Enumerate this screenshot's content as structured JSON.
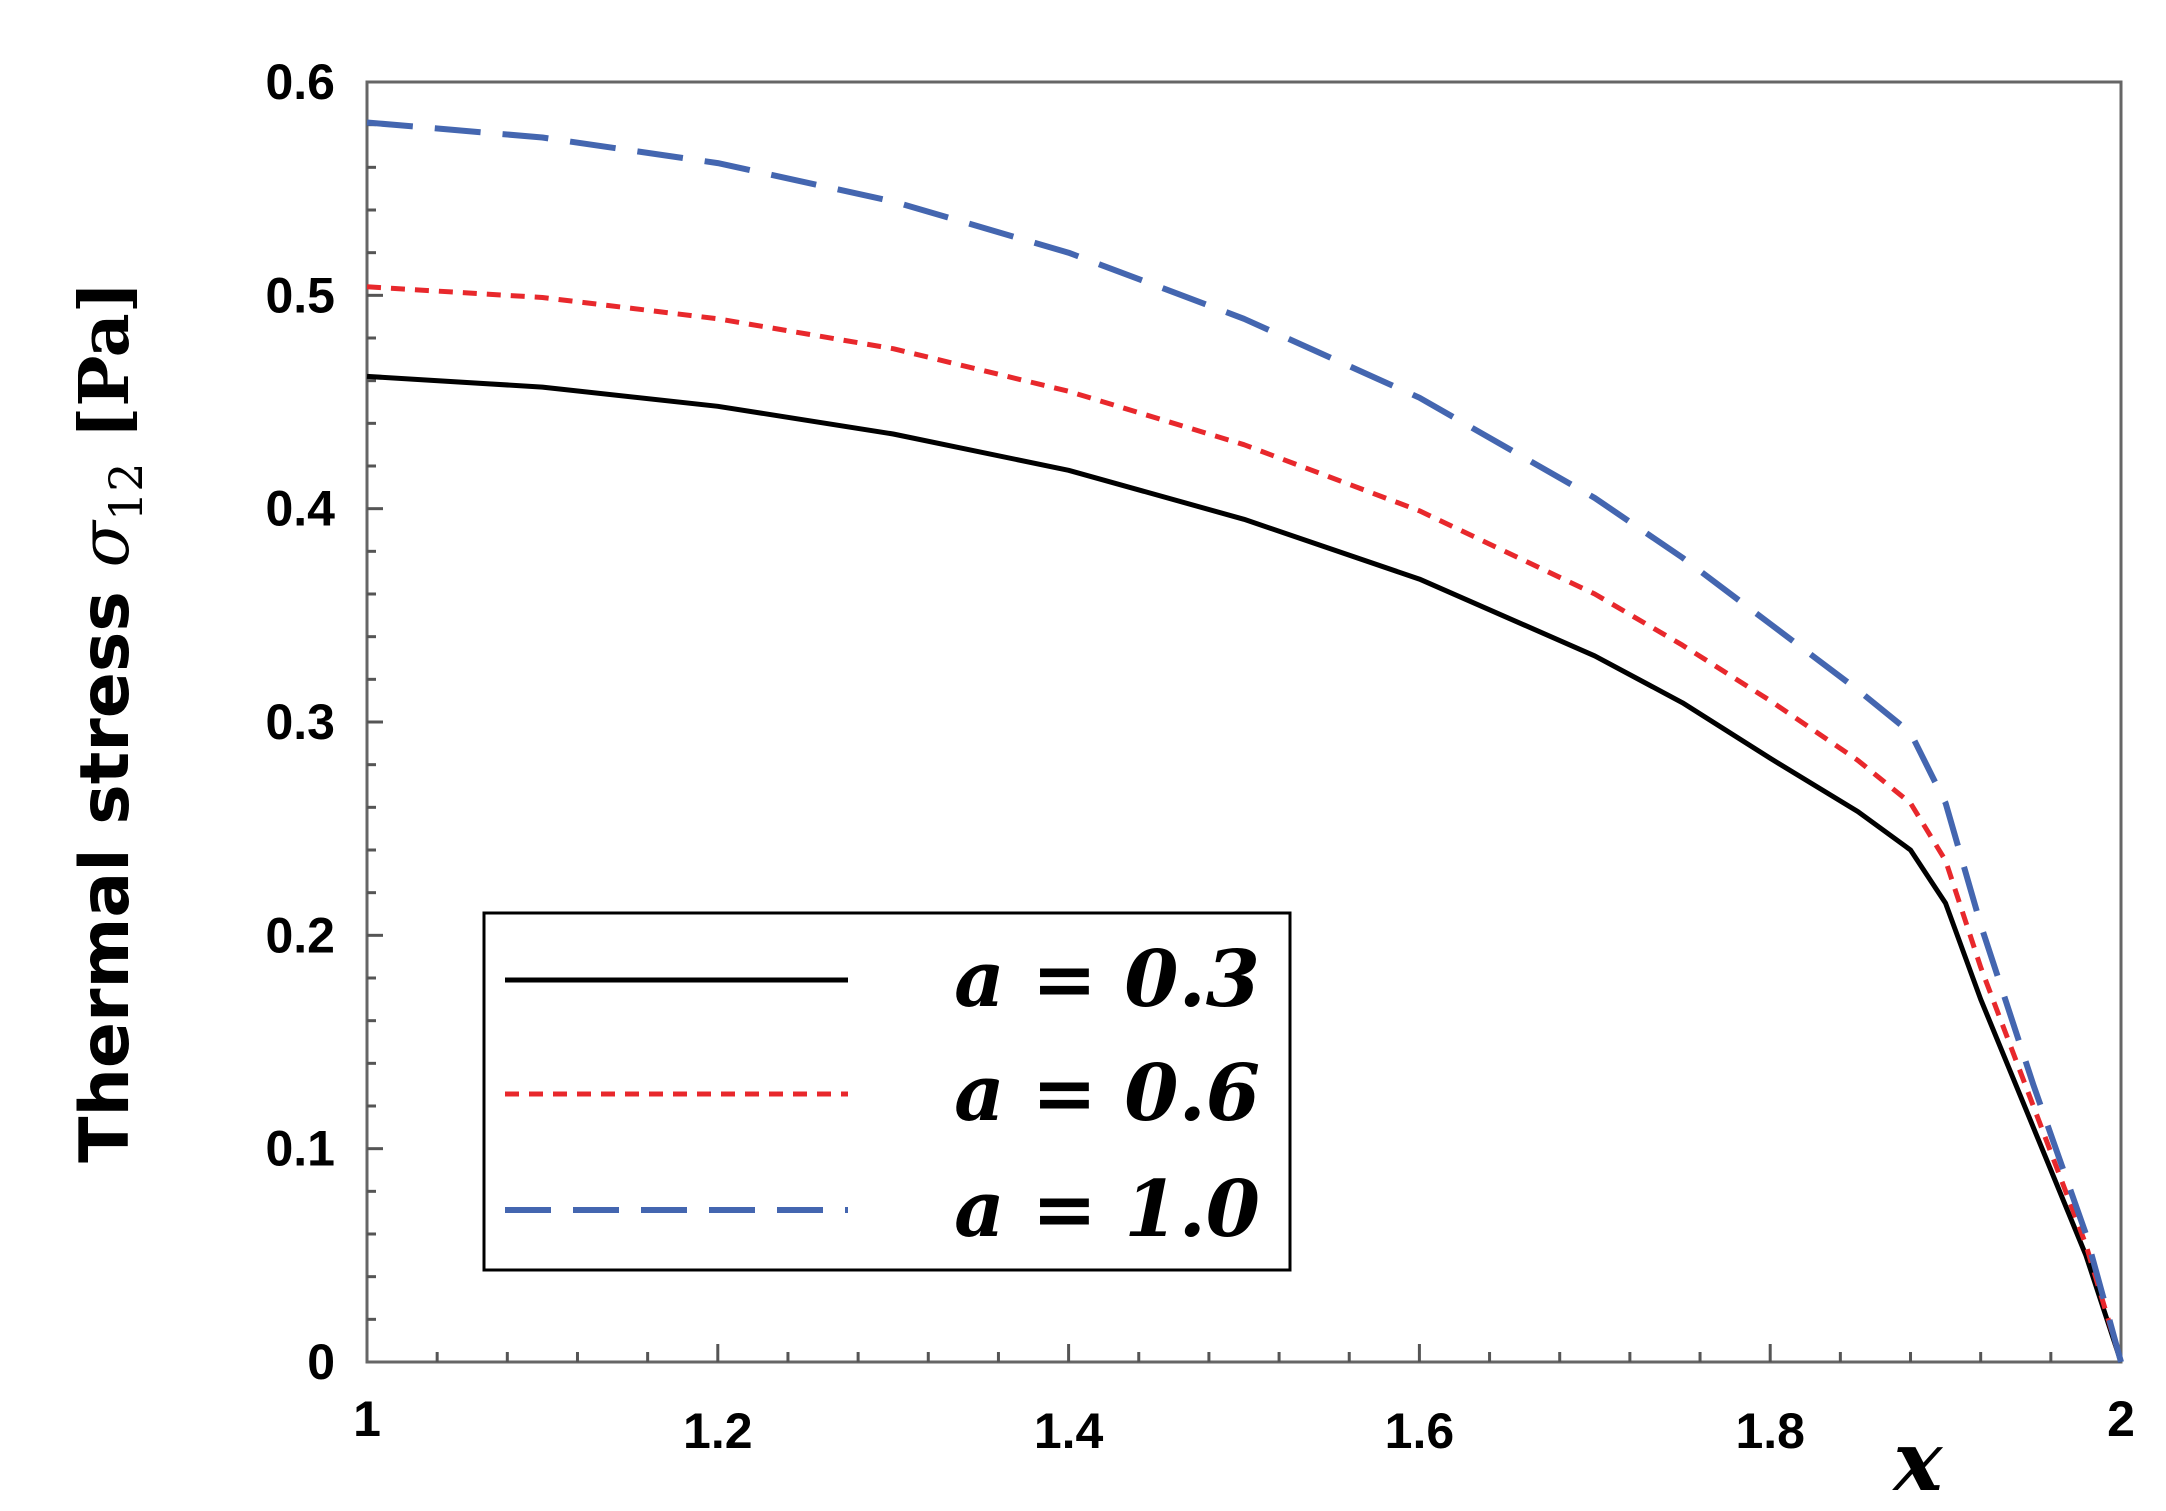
{
  "chart_data": {
    "type": "line",
    "ylabel": "Thermal stress σ12 [Pa]",
    "xlabel": "x",
    "xlim": [
      1,
      2
    ],
    "ylim": [
      0,
      0.6
    ],
    "x_ticks": [
      "1",
      "1.2",
      "1.4",
      "1.6",
      "1.8",
      "2"
    ],
    "y_ticks": [
      "0",
      "0.1",
      "0.2",
      "0.3",
      "0.4",
      "0.5",
      "0.6"
    ],
    "grid": false,
    "legend_position": "bottom-left",
    "series": [
      {
        "name": "a = 0.3",
        "color": "#000000",
        "style": "solid",
        "x": [
          1.0,
          1.1,
          1.2,
          1.3,
          1.4,
          1.5,
          1.6,
          1.7,
          1.75,
          1.8,
          1.85,
          1.88,
          1.9,
          1.92,
          1.95,
          1.98,
          2.0
        ],
        "y": [
          0.462,
          0.457,
          0.448,
          0.435,
          0.418,
          0.395,
          0.367,
          0.331,
          0.309,
          0.283,
          0.258,
          0.24,
          0.215,
          0.17,
          0.11,
          0.05,
          0.0
        ]
      },
      {
        "name": "a = 0.6",
        "color": "#e8282c",
        "style": "short-dash",
        "x": [
          1.0,
          1.1,
          1.2,
          1.3,
          1.4,
          1.5,
          1.6,
          1.7,
          1.75,
          1.8,
          1.85,
          1.88,
          1.9,
          1.92,
          1.95,
          1.98,
          2.0
        ],
        "y": [
          0.504,
          0.499,
          0.489,
          0.475,
          0.455,
          0.43,
          0.399,
          0.36,
          0.336,
          0.31,
          0.282,
          0.262,
          0.235,
          0.185,
          0.12,
          0.055,
          0.0
        ]
      },
      {
        "name": "a = 1.0",
        "color": "#4466b0",
        "style": "long-dash",
        "x": [
          1.0,
          1.1,
          1.2,
          1.3,
          1.4,
          1.5,
          1.6,
          1.7,
          1.75,
          1.8,
          1.85,
          1.88,
          1.9,
          1.92,
          1.95,
          1.98,
          2.0
        ],
        "y": [
          0.581,
          0.574,
          0.562,
          0.544,
          0.52,
          0.489,
          0.452,
          0.405,
          0.377,
          0.346,
          0.315,
          0.295,
          0.262,
          0.205,
          0.13,
          0.06,
          0.0
        ]
      }
    ]
  }
}
